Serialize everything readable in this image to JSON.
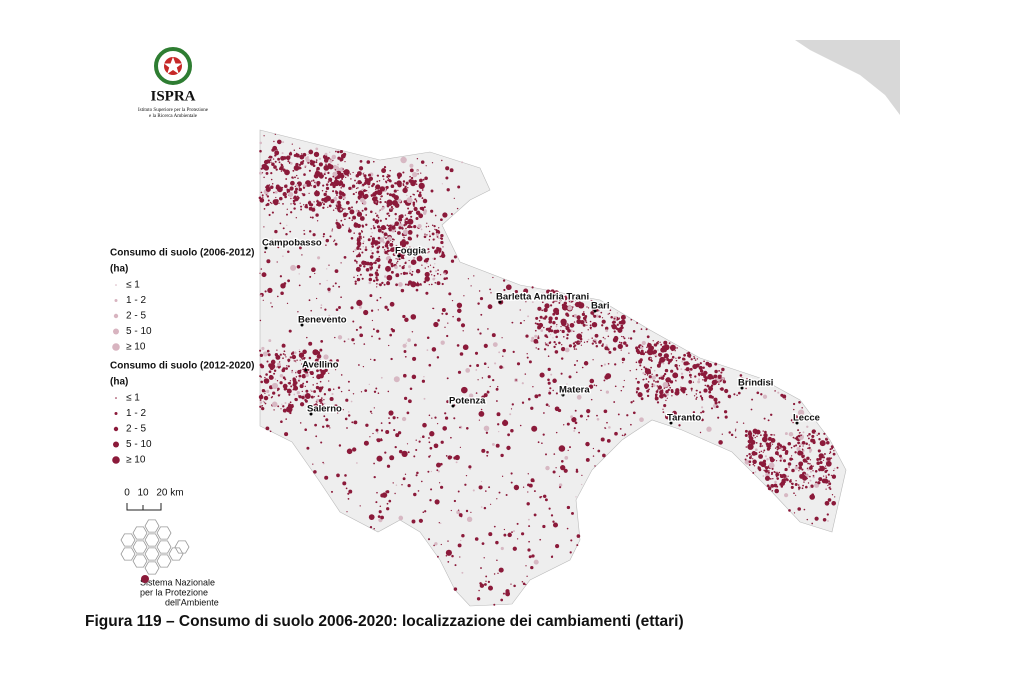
{
  "header": {
    "logo_text": "ISPRA",
    "institute": [
      "Istituto Superiore per la Protezione",
      "e la Ricerca Ambientale"
    ]
  },
  "legend": [
    {
      "title": "Consumo di suolo (2006-2012)",
      "unit": "(ha)",
      "items": [
        "≤ 1",
        "1 - 2",
        "2 - 5",
        "5 - 10",
        "≥ 10"
      ]
    },
    {
      "title": "Consumo di suolo (2012-2020)",
      "unit": "(ha)",
      "items": [
        "≤ 1",
        "1 - 2",
        "2 - 5",
        "5 - 10",
        "≥ 10"
      ]
    }
  ],
  "scale_bar": {
    "labels": [
      "0",
      "10",
      "20 km"
    ]
  },
  "cities": [
    "Campobasso",
    "Foggia",
    "Barletta Andria Trani",
    "Bari",
    "Benevento",
    "Avellino",
    "Salerno",
    "Potenza",
    "Matera",
    "Taranto",
    "Brindisi",
    "Lecce"
  ],
  "network": [
    "Sistema Nazionale",
    "per la Protezione",
    "dell'Ambiente"
  ],
  "caption": "Figura 119 – Consumo di suolo 2006-2020: localizzazione dei cambiamenti (ettari)"
}
